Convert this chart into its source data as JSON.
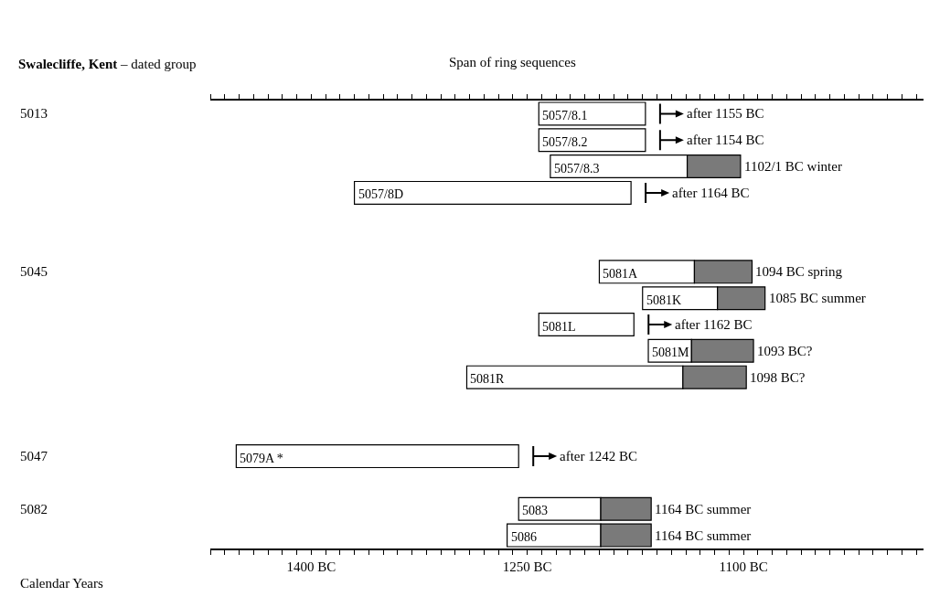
{
  "chart_data": {
    "type": "bar",
    "orientation": "horizontal",
    "title": "Swalecliffe, Kent",
    "subtitle": "– dated group",
    "categories": [
      "5057/8.1",
      "5057/8.2",
      "5057/8.3",
      "5057/8D",
      null,
      null,
      "5081A",
      "5081K",
      "5081L",
      "5081M",
      "5081R",
      null,
      null,
      "5079A *",
      null,
      "5083",
      "5086"
    ],
    "series": [
      {
        "color": "#ffffff",
        "base": [
          -1242,
          -1242,
          -1234,
          -1370,
          null,
          null,
          -1200,
          -1170,
          -1242,
          -1166,
          -1292,
          null,
          null,
          -1452,
          null,
          -1256,
          -1264
        ],
        "values": [
          74,
          74,
          95,
          192,
          null,
          null,
          66,
          52,
          66,
          30,
          150,
          null,
          null,
          196,
          null,
          57,
          65
        ]
      },
      {
        "color": "#7a7a7a",
        "base": [
          null,
          null,
          -1139,
          null,
          null,
          null,
          -1134,
          -1118,
          null,
          -1136,
          -1142,
          null,
          null,
          null,
          null,
          -1199,
          -1199
        ],
        "values": [
          null,
          null,
          37,
          null,
          null,
          null,
          40,
          33,
          null,
          43,
          44,
          null,
          null,
          null,
          null,
          35,
          35
        ]
      }
    ],
    "xlim": [
      -1470,
      -975
    ],
    "xticks": [
      {
        "value": -1470,
        "label": null
      },
      {
        "value": -1460,
        "label": null
      },
      {
        "value": -1450,
        "label": null
      },
      {
        "value": -1440,
        "label": null
      },
      {
        "value": -1430,
        "label": null
      },
      {
        "value": -1420,
        "label": null
      },
      {
        "value": -1410,
        "label": null
      },
      {
        "value": -1400,
        "label": "1400 BC"
      },
      {
        "value": -1390,
        "label": null
      },
      {
        "value": -1380,
        "label": null
      },
      {
        "value": -1370,
        "label": null
      },
      {
        "value": -1360,
        "label": null
      },
      {
        "value": -1350,
        "label": null
      },
      {
        "value": -1340,
        "label": null
      },
      {
        "value": -1330,
        "label": null
      },
      {
        "value": -1320,
        "label": null
      },
      {
        "value": -1310,
        "label": null
      },
      {
        "value": -1300,
        "label": null
      },
      {
        "value": -1290,
        "label": null
      },
      {
        "value": -1280,
        "label": null
      },
      {
        "value": -1270,
        "label": null
      },
      {
        "value": -1260,
        "label": null
      },
      {
        "value": -1250,
        "label": "1250 BC"
      },
      {
        "value": -1240,
        "label": null
      },
      {
        "value": -1230,
        "label": null
      },
      {
        "value": -1220,
        "label": null
      },
      {
        "value": -1210,
        "label": null
      },
      {
        "value": -1200,
        "label": null
      },
      {
        "value": -1190,
        "label": null
      },
      {
        "value": -1180,
        "label": null
      },
      {
        "value": -1170,
        "label": null
      },
      {
        "value": -1160,
        "label": null
      },
      {
        "value": -1150,
        "label": null
      },
      {
        "value": -1140,
        "label": null
      },
      {
        "value": -1130,
        "label": null
      },
      {
        "value": -1120,
        "label": null
      },
      {
        "value": -1110,
        "label": null
      },
      {
        "value": -1100,
        "label": "1100 BC"
      },
      {
        "value": -1090,
        "label": null
      },
      {
        "value": -1080,
        "label": null
      },
      {
        "value": -1070,
        "label": null
      },
      {
        "value": -1060,
        "label": null
      },
      {
        "value": -1050,
        "label": null
      },
      {
        "value": -1040,
        "label": null
      },
      {
        "value": -1030,
        "label": null
      },
      {
        "value": -1020,
        "label": null
      },
      {
        "value": -1010,
        "label": null
      },
      {
        "value": -1000,
        "label": null
      },
      {
        "value": -990,
        "label": null
      },
      {
        "value": -980,
        "label": null
      }
    ],
    "tick_labels": "x",
    "annotations": [
      "Span of ring sequences",
      "Calendar Years",
      "5013",
      "5045",
      "5047",
      "5082",
      "after 1155 BC",
      "after 1154 BC",
      "1102/1 BC winter",
      "after 1164 BC",
      "1094 BC spring",
      "1085 BC summer",
      "after 1162 BC",
      "1093 BC?",
      "1098 BC?",
      "after 1242 BC",
      "1164 BC summer",
      "1164 BC summer"
    ]
  }
}
